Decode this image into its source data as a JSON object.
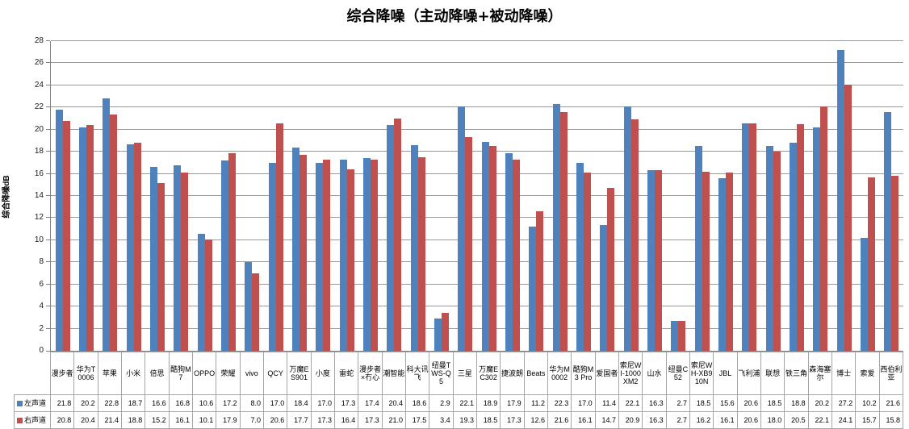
{
  "chart_data": {
    "type": "bar",
    "title": "综合降噪（主动降噪+被动降噪）",
    "xlabel": "",
    "ylabel": "综合降噪dB",
    "ylim": [
      0,
      28
    ],
    "ytick_step": 2,
    "grid": true,
    "legend_position": "table-left",
    "categories": [
      "漫步者",
      "华为T0006",
      "苹果",
      "小米",
      "倍思",
      "酷狗M7",
      "OPPO",
      "荣耀",
      "vivo",
      "QCY",
      "万魔ES901",
      "小度",
      "雷蛇",
      "漫步者×冇心",
      "潮智能",
      "科大讯飞",
      "纽曼TWS-Q5",
      "三星",
      "万魔EC302",
      "捷波朗",
      "Beats",
      "华为M0002",
      "酷狗M3 Pro",
      "爱国者",
      "索尼WI-1000XM2",
      "山水",
      "纽曼C52",
      "索尼WH-XB910N",
      "JBL",
      "飞利浦",
      "联想",
      "铁三角",
      "森海塞尔",
      "博士",
      "索爱",
      "西伯利亚"
    ],
    "series": [
      {
        "name": "左声道",
        "color": "#4F81BD",
        "values": [
          21.8,
          20.2,
          22.8,
          18.7,
          16.6,
          16.8,
          10.6,
          17.2,
          8.0,
          17.0,
          18.4,
          17.0,
          17.3,
          17.4,
          20.4,
          18.6,
          2.9,
          22.1,
          18.9,
          17.9,
          11.2,
          22.3,
          17.0,
          11.4,
          22.1,
          16.3,
          2.7,
          18.5,
          15.6,
          20.6,
          18.5,
          18.8,
          20.2,
          27.2,
          10.2,
          21.6
        ]
      },
      {
        "name": "右声道",
        "color": "#C0504D",
        "values": [
          20.8,
          20.4,
          21.4,
          18.8,
          15.2,
          16.1,
          10.1,
          17.9,
          7.0,
          20.6,
          17.7,
          17.3,
          16.4,
          17.3,
          21.0,
          17.5,
          3.4,
          19.3,
          18.5,
          17.3,
          12.6,
          21.6,
          16.1,
          14.7,
          20.9,
          16.3,
          2.7,
          16.2,
          16.1,
          20.6,
          18.0,
          20.5,
          22.1,
          24.1,
          15.7,
          15.8
        ]
      }
    ],
    "colors": {
      "gridline": "#9a9a9a",
      "axis": "#808080",
      "table_border": "#a6a6a6",
      "background": "#ffffff"
    }
  }
}
